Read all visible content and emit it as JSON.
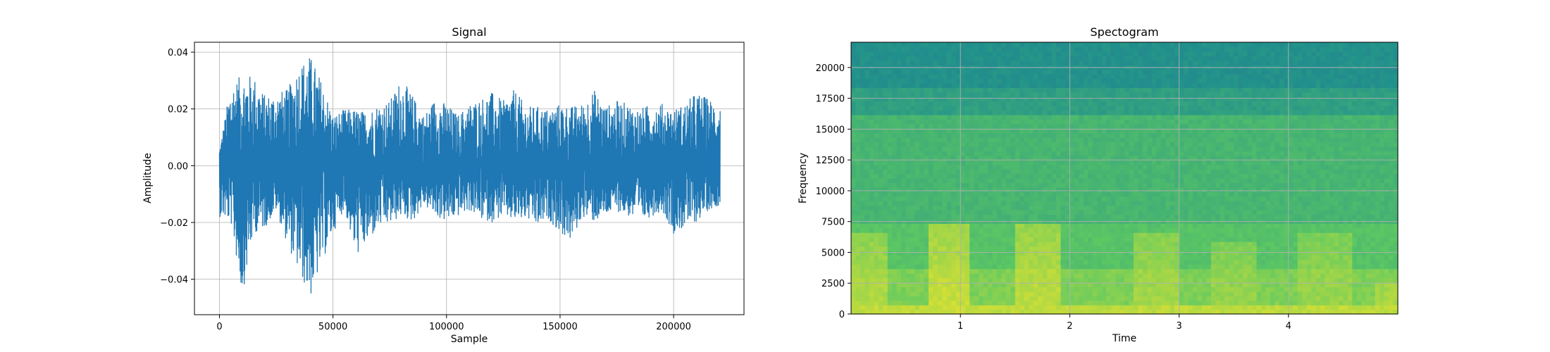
{
  "chart_data": [
    {
      "type": "line",
      "title": "Signal",
      "xlabel": "Sample",
      "ylabel": "Amplitude",
      "xlim": [
        -11000,
        231000
      ],
      "ylim": [
        -0.0525,
        0.0435
      ],
      "xticks": [
        0,
        50000,
        100000,
        150000,
        200000
      ],
      "xtick_labels": [
        "0",
        "50000",
        "100000",
        "150000",
        "200000"
      ],
      "yticks": [
        -0.04,
        -0.02,
        0.0,
        0.02,
        0.04
      ],
      "ytick_labels": [
        "−0.04",
        "−0.02",
        "0.00",
        "0.02",
        "0.04"
      ],
      "grid": true,
      "color": "#1f77b4",
      "sample_count": 220500,
      "envelope": {
        "x": [
          0,
          5000,
          10000,
          15000,
          20000,
          25000,
          30000,
          35000,
          40000,
          45000,
          50000,
          55000,
          60000,
          65000,
          70000,
          75000,
          80000,
          85000,
          90000,
          95000,
          100000,
          105000,
          110000,
          115000,
          120000,
          125000,
          130000,
          135000,
          140000,
          145000,
          150000,
          155000,
          160000,
          165000,
          170000,
          175000,
          180000,
          185000,
          190000,
          195000,
          200000,
          205000,
          210000,
          215000,
          220000
        ],
        "max": [
          0.006,
          0.029,
          0.032,
          0.032,
          0.025,
          0.026,
          0.027,
          0.036,
          0.039,
          0.03,
          0.018,
          0.02,
          0.02,
          0.019,
          0.022,
          0.023,
          0.031,
          0.025,
          0.018,
          0.024,
          0.022,
          0.018,
          0.022,
          0.024,
          0.026,
          0.023,
          0.027,
          0.021,
          0.021,
          0.02,
          0.022,
          0.021,
          0.022,
          0.027,
          0.021,
          0.023,
          0.022,
          0.02,
          0.022,
          0.022,
          0.02,
          0.022,
          0.026,
          0.024,
          0.022
        ],
        "min": [
          -0.018,
          -0.02,
          -0.046,
          -0.024,
          -0.022,
          -0.016,
          -0.028,
          -0.038,
          -0.047,
          -0.035,
          -0.024,
          -0.015,
          -0.032,
          -0.028,
          -0.022,
          -0.021,
          -0.018,
          -0.02,
          -0.014,
          -0.018,
          -0.02,
          -0.018,
          -0.016,
          -0.019,
          -0.02,
          -0.018,
          -0.02,
          -0.019,
          -0.022,
          -0.019,
          -0.024,
          -0.027,
          -0.018,
          -0.02,
          -0.018,
          -0.016,
          -0.018,
          -0.02,
          -0.018,
          -0.016,
          -0.024,
          -0.022,
          -0.02,
          -0.016,
          -0.014
        ]
      }
    },
    {
      "type": "heatmap",
      "title": "Spectogram",
      "xlabel": "Time",
      "ylabel": "Frequency",
      "xlim": [
        0.0,
        5.0
      ],
      "ylim": [
        0,
        22050
      ],
      "xticks": [
        1,
        2,
        3,
        4
      ],
      "xtick_labels": [
        "1",
        "2",
        "3",
        "4"
      ],
      "yticks": [
        0,
        2500,
        5000,
        7500,
        10000,
        12500,
        15000,
        17500,
        20000
      ],
      "ytick_labels": [
        "0",
        "2500",
        "5000",
        "7500",
        "10000",
        "12500",
        "15000",
        "17500",
        "20000"
      ],
      "grid": true,
      "colormap": "viridis",
      "band_rows": [
        {
          "freq_top": 22050,
          "freq_bottom": 18500,
          "level": 0.5
        },
        {
          "freq_top": 18500,
          "freq_bottom": 16000,
          "level": 0.56
        },
        {
          "freq_top": 16000,
          "freq_bottom": 7500,
          "level": 0.66
        },
        {
          "freq_top": 7500,
          "freq_bottom": 3500,
          "level": 0.72
        },
        {
          "freq_top": 3500,
          "freq_bottom": 0,
          "level": 0.8
        }
      ],
      "hotspots": [
        {
          "t": [
            0.0,
            0.35
          ],
          "f": [
            0,
            6500
          ],
          "level": 0.88
        },
        {
          "t": [
            0.7,
            1.1
          ],
          "f": [
            0,
            7500
          ],
          "level": 0.92
        },
        {
          "t": [
            1.5,
            1.9
          ],
          "f": [
            0,
            7500
          ],
          "level": 0.9
        },
        {
          "t": [
            2.6,
            3.0
          ],
          "f": [
            0,
            6500
          ],
          "level": 0.86
        },
        {
          "t": [
            3.3,
            3.7
          ],
          "f": [
            0,
            6000
          ],
          "level": 0.84
        },
        {
          "t": [
            4.1,
            4.6
          ],
          "f": [
            0,
            6500
          ],
          "level": 0.84
        },
        {
          "t": [
            4.8,
            5.0
          ],
          "f": [
            0,
            2500
          ],
          "level": 0.88
        }
      ]
    }
  ]
}
